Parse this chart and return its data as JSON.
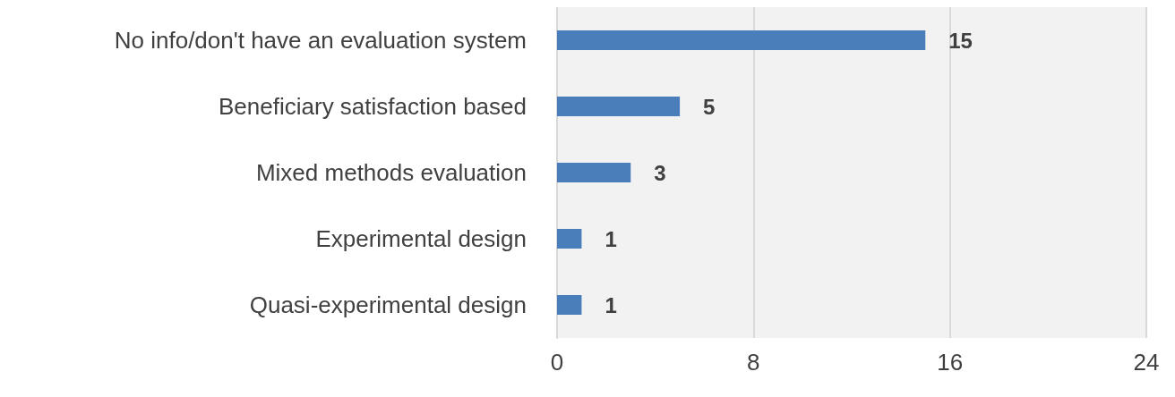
{
  "chart_data": {
    "type": "bar",
    "orientation": "horizontal",
    "categories": [
      "No info/don't have an evaluation system",
      "Beneficiary satisfaction based",
      "Mixed methods evaluation",
      "Experimental design",
      "Quasi-experimental design"
    ],
    "values": [
      15,
      5,
      3,
      1,
      1
    ],
    "color": "#4a7ebb",
    "xlim": [
      0,
      24
    ],
    "xticks": [
      0,
      8,
      16,
      24
    ],
    "grid": "x",
    "data_labels": true
  }
}
